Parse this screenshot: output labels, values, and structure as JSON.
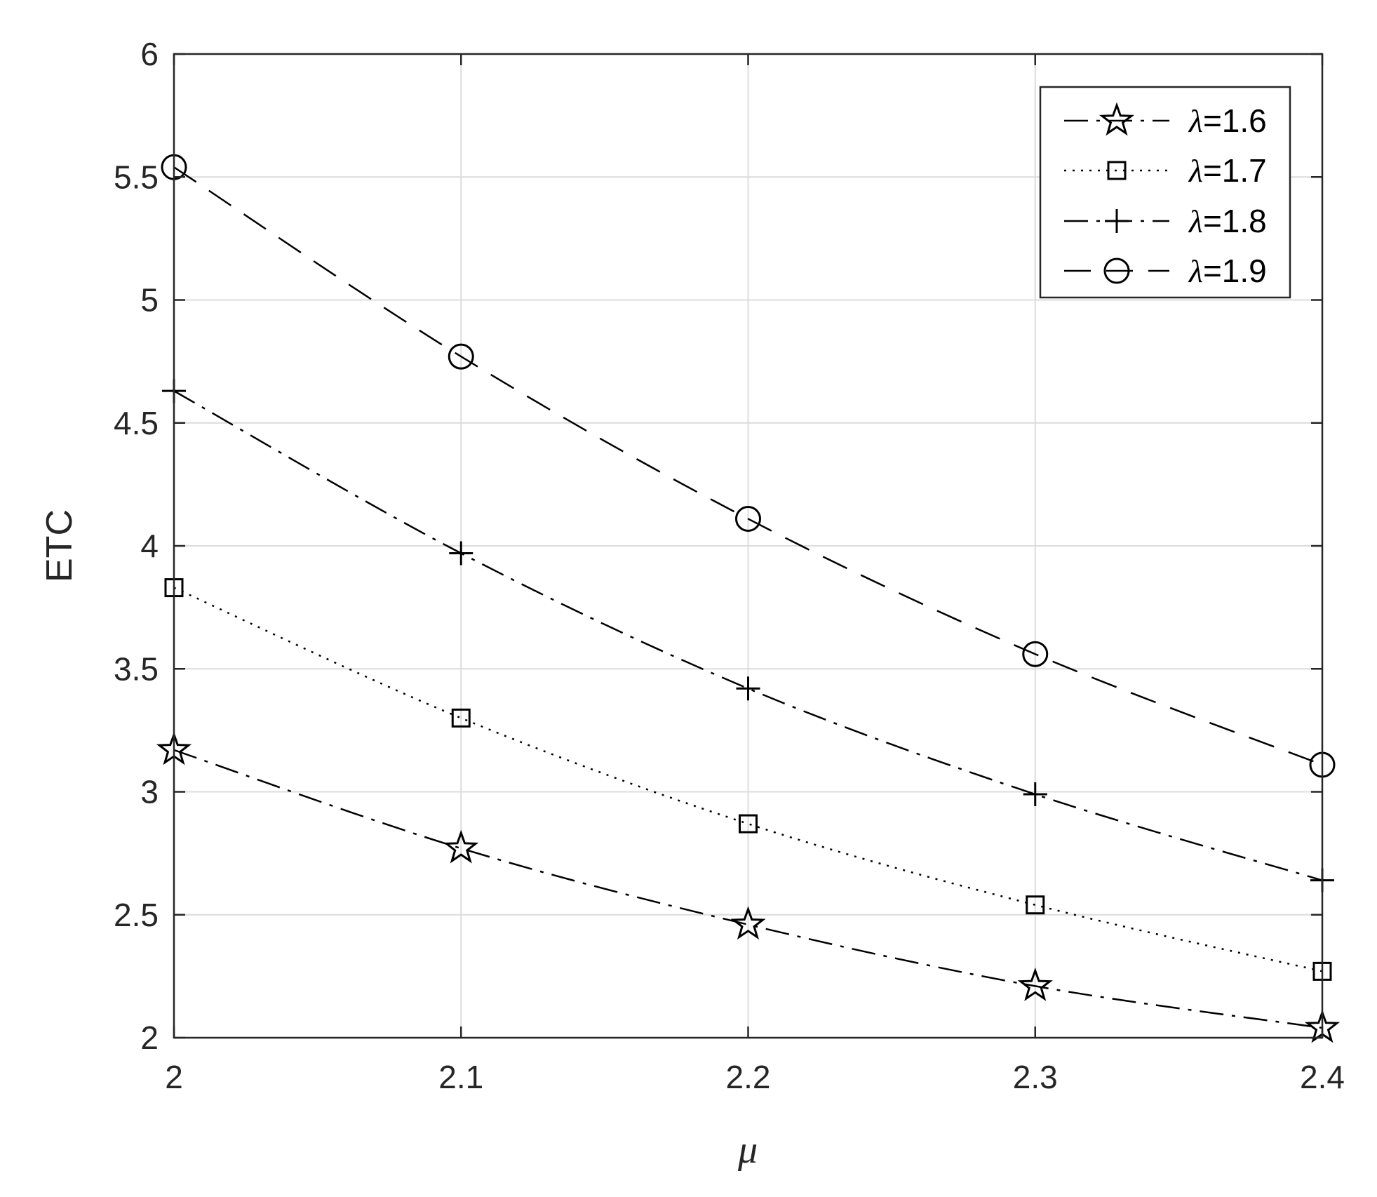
{
  "chart_data": {
    "type": "line",
    "title": "",
    "xlabel": "μ",
    "ylabel": "ETC",
    "xlim": [
      2,
      2.4
    ],
    "ylim": [
      2,
      6
    ],
    "xticks": [
      2,
      2.1,
      2.2,
      2.3,
      2.4
    ],
    "xtick_labels": [
      "2",
      "2.1",
      "2.2",
      "2.3",
      "2.4"
    ],
    "yticks": [
      2,
      2.5,
      3,
      3.5,
      4,
      4.5,
      5,
      5.5,
      6
    ],
    "ytick_labels": [
      "2",
      "2.5",
      "3",
      "3.5",
      "4",
      "4.5",
      "5",
      "5.5",
      "6"
    ],
    "grid": true,
    "legend_position": "top-right",
    "x": [
      2,
      2.1,
      2.2,
      2.3,
      2.4
    ],
    "series": [
      {
        "name": "λ=1.6",
        "symbol": "λ",
        "value_text": "=1.6",
        "marker": "star",
        "line_style": "dash-dot",
        "values": [
          3.17,
          2.77,
          2.46,
          2.21,
          2.04
        ]
      },
      {
        "name": "λ=1.7",
        "symbol": "λ",
        "value_text": "=1.7",
        "marker": "square",
        "line_style": "dotted",
        "values": [
          3.83,
          3.3,
          2.87,
          2.54,
          2.27
        ]
      },
      {
        "name": "λ=1.8",
        "symbol": "λ",
        "value_text": "=1.8",
        "marker": "plus",
        "line_style": "dash-dot",
        "values": [
          4.63,
          3.97,
          3.42,
          2.99,
          2.64
        ]
      },
      {
        "name": "λ=1.9",
        "symbol": "λ",
        "value_text": "=1.9",
        "marker": "circle",
        "line_style": "dashed",
        "values": [
          5.54,
          4.77,
          4.11,
          3.56,
          3.11
        ]
      }
    ]
  }
}
